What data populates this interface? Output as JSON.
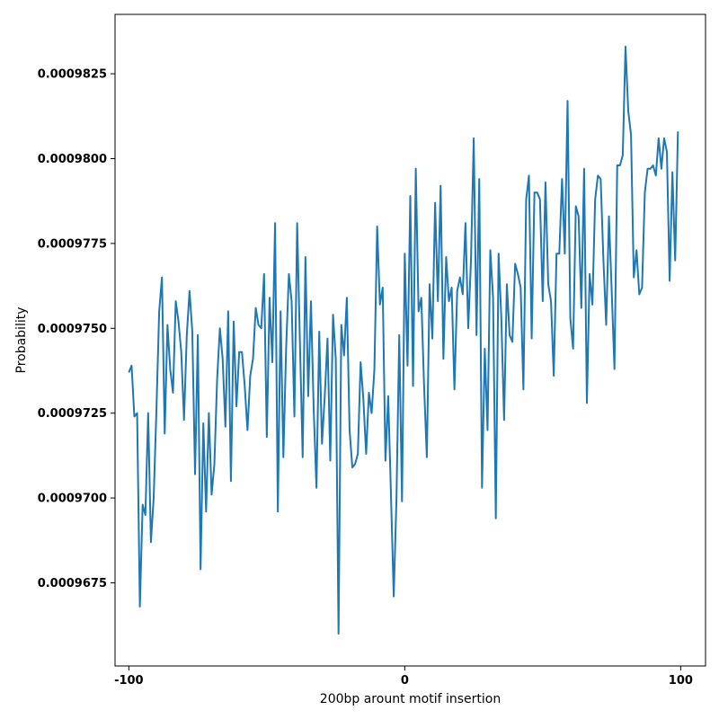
{
  "chart_data": {
    "type": "line",
    "title": "",
    "xlabel": "200bp arount motif insertion",
    "ylabel": "Probability",
    "xlim": [
      -105,
      109
    ],
    "ylim": [
      0.00096505,
      0.00098425
    ],
    "xticks": [
      -100,
      0,
      100
    ],
    "xtick_labels": [
      "-100",
      "0",
      "100"
    ],
    "yticks": [
      0.0009675,
      0.00097,
      0.0009725,
      0.000975,
      0.0009775,
      0.00098,
      0.0009825
    ],
    "ytick_labels": [
      "0.0009675",
      "0.0009700",
      "0.0009725",
      "0.0009750",
      "0.0009775",
      "0.0009800",
      "0.0009825"
    ],
    "grid": false,
    "line_color": "#1f77b4",
    "series": [
      {
        "x": [
          -100,
          -99,
          -98,
          -97,
          -96,
          -95,
          -94,
          -93,
          -92,
          -91,
          -90,
          -89,
          -88,
          -87,
          -86,
          -85,
          -84,
          -83,
          -82,
          -81,
          -80,
          -79,
          -78,
          -77,
          -76,
          -75,
          -74,
          -73,
          -72,
          -71,
          -70,
          -69,
          -68,
          -67,
          -66,
          -65,
          -64,
          -63,
          -62,
          -61,
          -60,
          -59,
          -58,
          -57,
          -56,
          -55,
          -54,
          -53,
          -52,
          -51,
          -50,
          -49,
          -48,
          -47,
          -46,
          -45,
          -44,
          -43,
          -42,
          -41,
          -40,
          -39,
          -38,
          -37,
          -36,
          -35,
          -34,
          -33,
          -32,
          -31,
          -30,
          -29,
          -28,
          -27,
          -26,
          -25,
          -24,
          -23,
          -22,
          -21,
          -20,
          -19,
          -18,
          -17,
          -16,
          -15,
          -14,
          -13,
          -12,
          -11,
          -10,
          -9,
          -8,
          -7,
          -6,
          -5,
          -4,
          -3,
          -2,
          -1,
          0,
          1,
          2,
          3,
          4,
          5,
          6,
          7,
          8,
          9,
          10,
          11,
          12,
          13,
          14,
          15,
          16,
          17,
          18,
          19,
          20,
          21,
          22,
          23,
          24,
          25,
          26,
          27,
          28,
          29,
          30,
          31,
          32,
          33,
          34,
          35,
          36,
          37,
          38,
          39,
          40,
          41,
          42,
          43,
          44,
          45,
          46,
          47,
          48,
          49,
          50,
          51,
          52,
          53,
          54,
          55,
          56,
          57,
          58,
          59,
          60,
          61,
          62,
          63,
          64,
          65,
          66,
          67,
          68,
          69,
          70,
          71,
          72,
          73,
          74,
          75,
          76,
          77,
          78,
          79,
          80,
          81,
          82,
          83,
          84,
          85,
          86,
          87,
          88,
          89,
          90,
          91,
          92,
          93,
          94,
          95,
          96,
          97,
          98,
          99
        ],
        "values": [
          0.0009737,
          0.0009739,
          0.0009724,
          0.0009725,
          0.0009668,
          0.0009698,
          0.0009695,
          0.0009725,
          0.0009687,
          0.00097,
          0.0009726,
          0.0009755,
          0.0009765,
          0.0009719,
          0.0009751,
          0.0009738,
          0.0009731,
          0.0009758,
          0.0009752,
          0.0009743,
          0.0009723,
          0.0009748,
          0.0009761,
          0.0009749,
          0.0009707,
          0.0009748,
          0.0009679,
          0.0009722,
          0.0009696,
          0.0009725,
          0.0009701,
          0.000971,
          0.0009735,
          0.000975,
          0.0009741,
          0.0009721,
          0.0009755,
          0.0009705,
          0.0009752,
          0.0009727,
          0.0009743,
          0.0009743,
          0.0009733,
          0.000972,
          0.0009736,
          0.0009741,
          0.0009756,
          0.0009751,
          0.000975,
          0.0009766,
          0.0009718,
          0.0009759,
          0.000974,
          0.0009781,
          0.0009696,
          0.0009755,
          0.0009712,
          0.0009744,
          0.0009766,
          0.0009758,
          0.0009724,
          0.0009781,
          0.0009746,
          0.0009712,
          0.0009771,
          0.000973,
          0.0009758,
          0.0009726,
          0.0009703,
          0.0009749,
          0.0009716,
          0.000973,
          0.0009747,
          0.0009711,
          0.0009754,
          0.0009741,
          0.000966,
          0.0009751,
          0.0009742,
          0.0009759,
          0.000972,
          0.0009709,
          0.000971,
          0.0009713,
          0.000974,
          0.0009729,
          0.0009713,
          0.0009731,
          0.0009725,
          0.0009738,
          0.000978,
          0.0009757,
          0.0009762,
          0.0009711,
          0.000973,
          0.0009701,
          0.0009671,
          0.00097,
          0.0009748,
          0.0009699,
          0.0009772,
          0.0009739,
          0.0009789,
          0.0009733,
          0.0009797,
          0.0009755,
          0.0009759,
          0.0009733,
          0.0009712,
          0.0009763,
          0.0009747,
          0.0009787,
          0.0009758,
          0.0009792,
          0.0009741,
          0.0009771,
          0.0009758,
          0.0009762,
          0.0009732,
          0.0009761,
          0.0009765,
          0.000976,
          0.0009781,
          0.000975,
          0.000977,
          0.0009806,
          0.0009748,
          0.0009794,
          0.0009703,
          0.0009744,
          0.000972,
          0.0009773,
          0.0009759,
          0.0009694,
          0.0009772,
          0.0009753,
          0.0009723,
          0.0009763,
          0.0009748,
          0.0009746,
          0.0009769,
          0.0009766,
          0.0009762,
          0.0009732,
          0.0009788,
          0.0009795,
          0.0009747,
          0.000979,
          0.000979,
          0.0009788,
          0.0009758,
          0.0009793,
          0.0009763,
          0.0009758,
          0.0009736,
          0.0009772,
          0.0009772,
          0.0009794,
          0.0009772,
          0.0009817,
          0.0009753,
          0.0009744,
          0.0009786,
          0.0009783,
          0.0009756,
          0.0009797,
          0.0009728,
          0.0009766,
          0.0009757,
          0.0009788,
          0.0009795,
          0.0009794,
          0.000977,
          0.0009751,
          0.0009783,
          0.0009761,
          0.0009738,
          0.0009798,
          0.0009798,
          0.0009801,
          0.0009833,
          0.0009814,
          0.0009807,
          0.0009765,
          0.0009773,
          0.000976,
          0.0009762,
          0.000979,
          0.0009797,
          0.0009797,
          0.0009798,
          0.0009795,
          0.0009806,
          0.0009797,
          0.0009806,
          0.0009802,
          0.0009764,
          0.0009796,
          0.000977,
          0.0009808
        ]
      }
    ]
  }
}
